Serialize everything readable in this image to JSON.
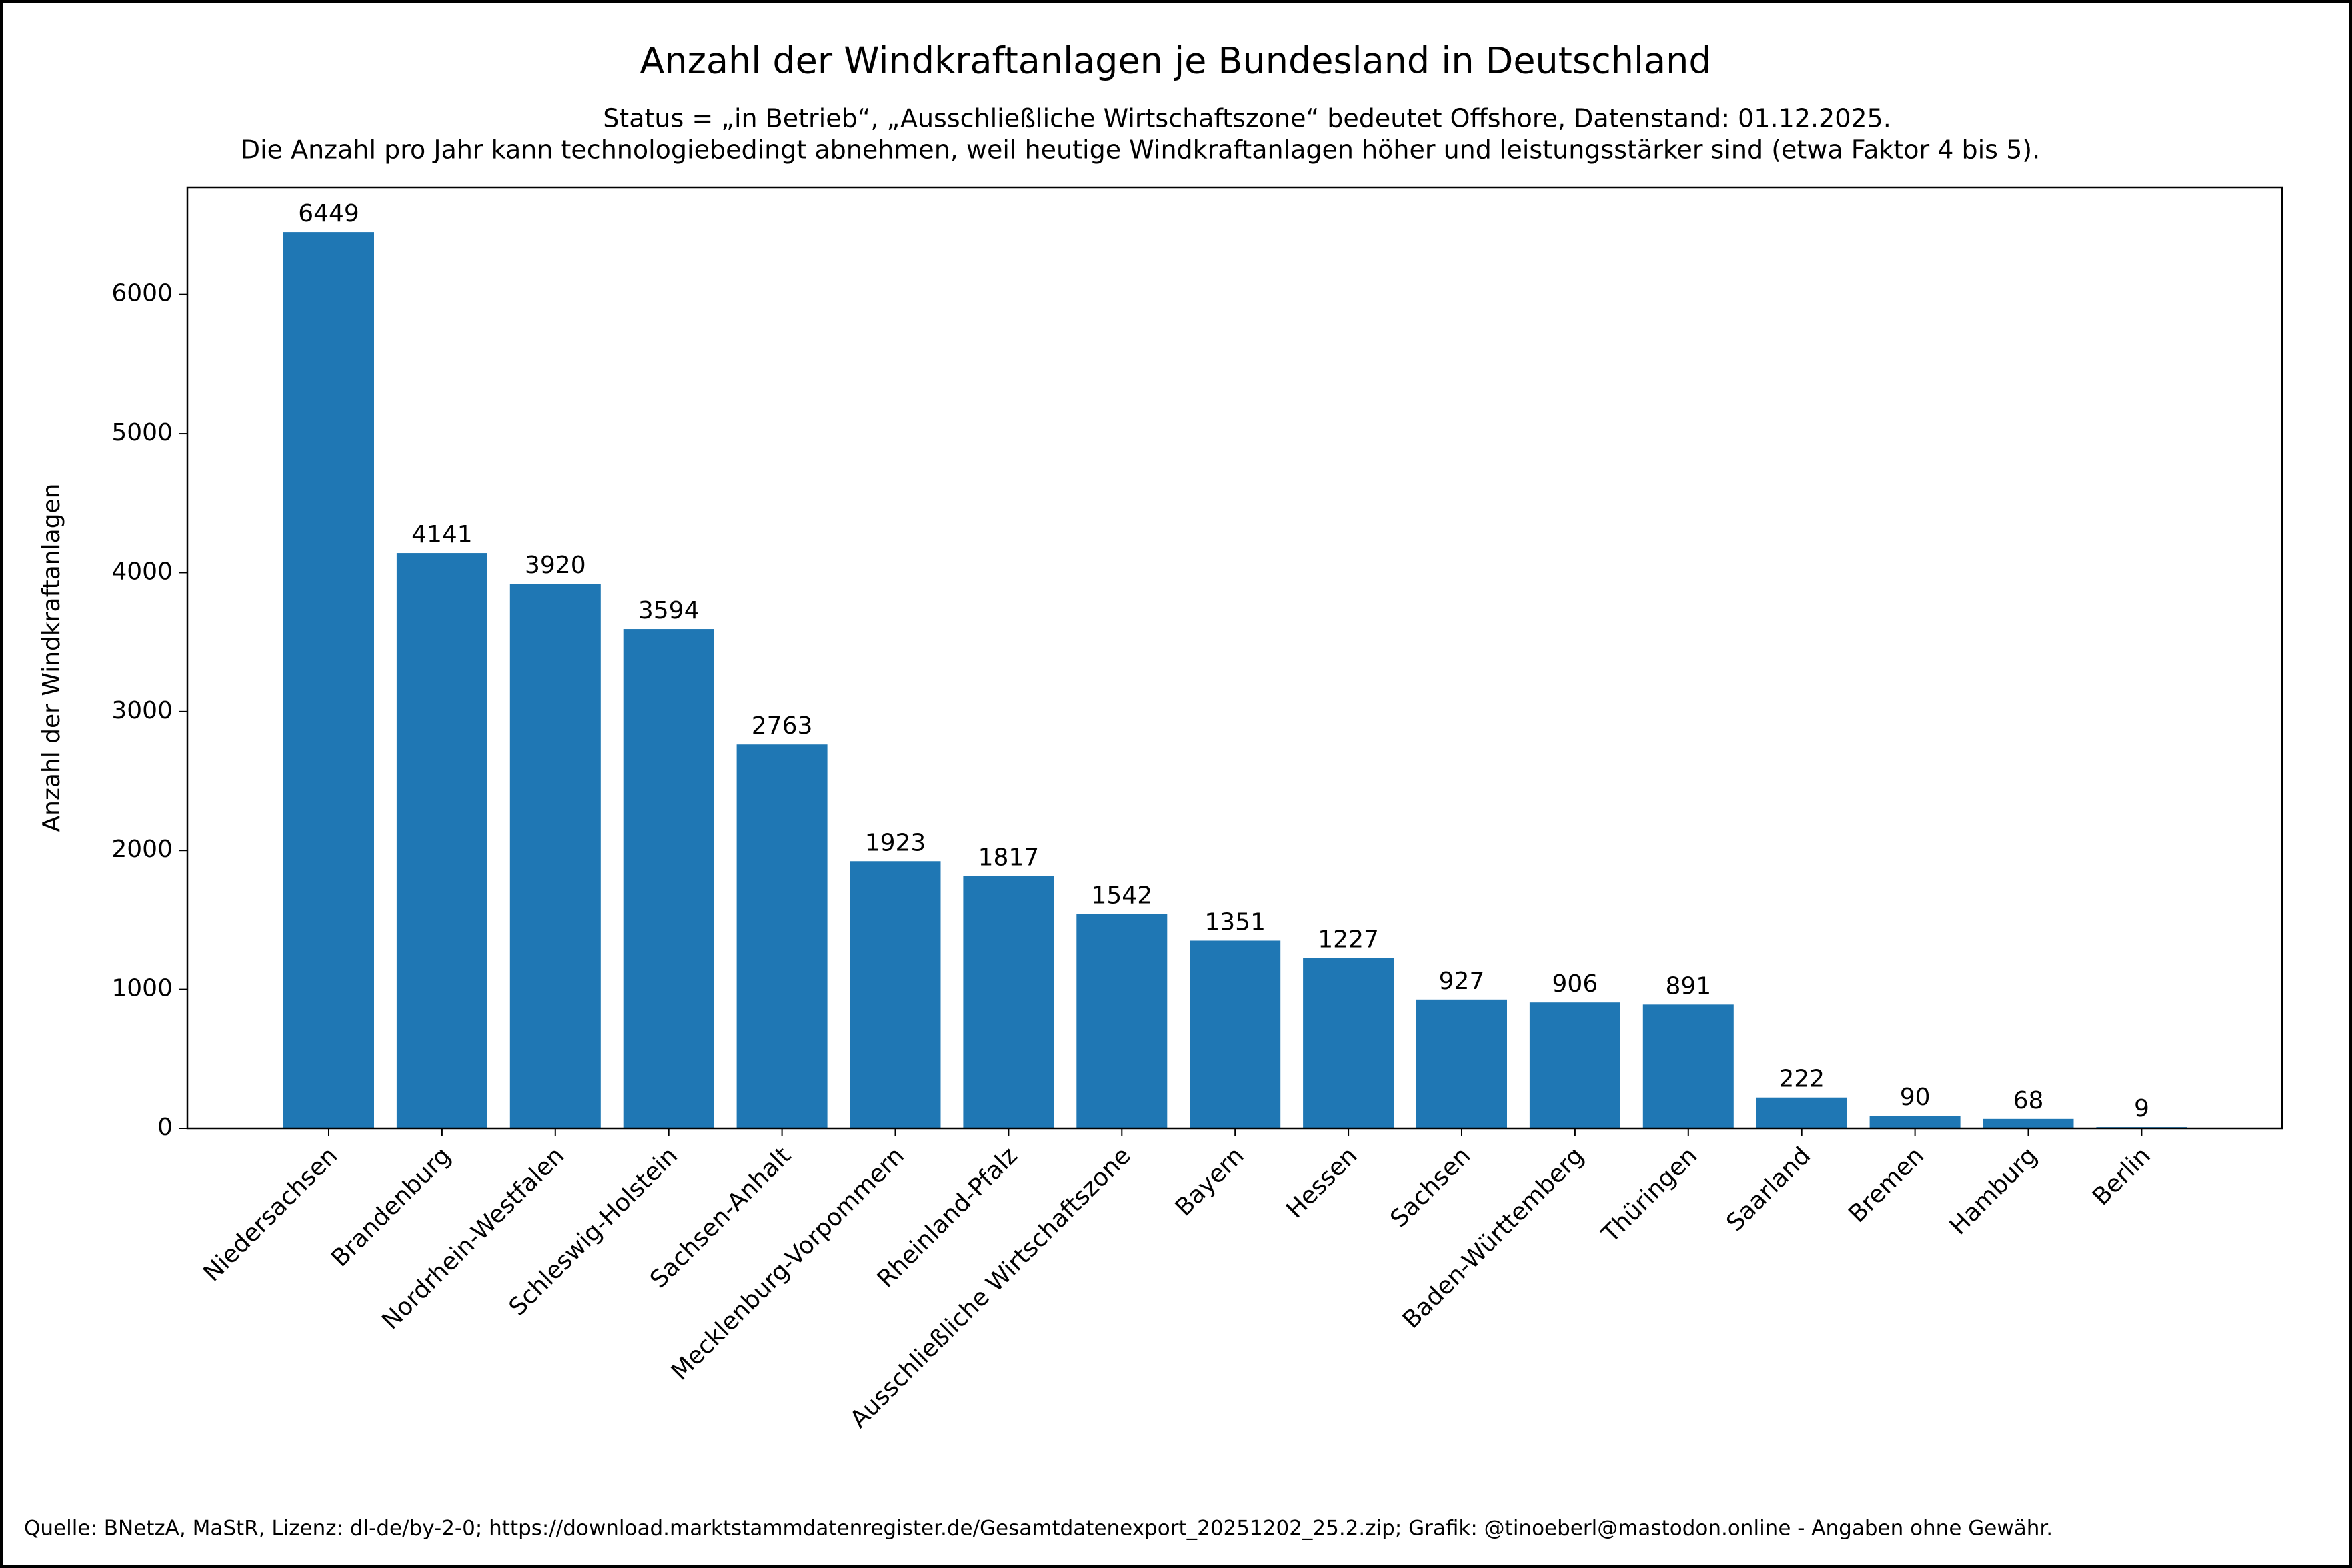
{
  "chart_data": {
    "type": "bar",
    "title": "Anzahl der Windkraftanlagen je Bundesland in Deutschland",
    "subtitle": [
      "Status = „in Betrieb“, „Ausschließliche Wirtschaftszone“ bedeutet Offshore, Datenstand: 01.12.2025.",
      "Die Anzahl pro Jahr kann technologiebedingt abnehmen, weil heutige Windkraftanlagen höher und leistungsstärker sind (etwa Faktor 4 bis 5)."
    ],
    "y_label": "Anzahl der Windkraftanlagen",
    "source": "Quelle: BNetzA, MaStR, Lizenz: dl-de/by-2-0; https://download.marktstammdatenregister.de/Gesamtdatenexport_20251202_25.2.zip; Grafik: @tinoeberl@mastodon.online - Angaben ohne Gewähr.",
    "categories": [
      "Niedersachsen",
      "Brandenburg",
      "Nordrhein-Westfalen",
      "Schleswig-Holstein",
      "Sachsen-Anhalt",
      "Mecklenburg-Vorpommern",
      "Rheinland-Pfalz",
      "Ausschließliche Wirtschaftszone",
      "Bayern",
      "Hessen",
      "Sachsen",
      "Baden-Württemberg",
      "Thüringen",
      "Saarland",
      "Bremen",
      "Hamburg",
      "Berlin"
    ],
    "values": [
      6449,
      4141,
      3920,
      3594,
      2763,
      1923,
      1817,
      1542,
      1351,
      1227,
      927,
      906,
      891,
      222,
      90,
      68,
      9
    ],
    "color": "#1f77b4",
    "ylim": [
      0,
      6771
    ],
    "yticks": [
      0,
      1000,
      2000,
      3000,
      4000,
      5000,
      6000
    ]
  }
}
